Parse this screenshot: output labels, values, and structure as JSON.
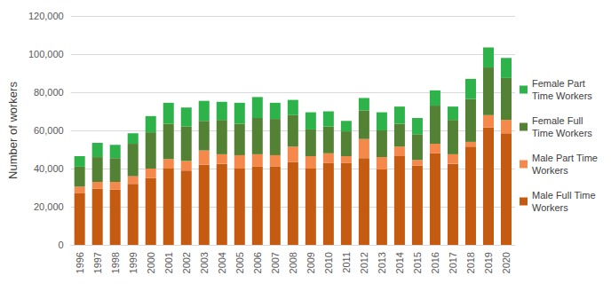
{
  "chart_data": {
    "type": "bar",
    "stacked": true,
    "y_label": "Number of workers",
    "categories": [
      "1996",
      "1997",
      "1998",
      "1999",
      "2000",
      "2001",
      "2002",
      "2003",
      "2004",
      "2005",
      "2006",
      "2007",
      "2008",
      "2009",
      "2010",
      "2011",
      "2012",
      "2013",
      "2014",
      "2015",
      "2016",
      "2017",
      "2018",
      "2019",
      "2020"
    ],
    "series": [
      {
        "name": "Male Full Time Workers",
        "color": "#c55a11",
        "values": [
          27000,
          29500,
          29000,
          32000,
          35000,
          40000,
          39000,
          42000,
          42500,
          40000,
          41000,
          41000,
          43500,
          40000,
          43000,
          43000,
          45500,
          39500,
          46500,
          41500,
          48000,
          42500,
          51500,
          61500,
          58500
        ]
      },
      {
        "name": "Male Part Time Workers",
        "color": "#f4894b",
        "values": [
          3500,
          3500,
          4000,
          4000,
          5000,
          5000,
          5000,
          7500,
          5000,
          7000,
          6500,
          6000,
          8000,
          6500,
          5000,
          3500,
          10000,
          6500,
          5000,
          3000,
          5000,
          5000,
          2500,
          6500,
          7000
        ]
      },
      {
        "name": "Female Full Time Workers",
        "color": "#548235",
        "values": [
          10500,
          13000,
          12500,
          17000,
          19000,
          18500,
          18000,
          15500,
          18000,
          16500,
          19000,
          19000,
          16500,
          14000,
          14000,
          13000,
          15000,
          14000,
          12000,
          13500,
          20000,
          18000,
          22500,
          25000,
          22000
        ]
      },
      {
        "name": "Female Part Time Workers",
        "color": "#2eb24a",
        "values": [
          5500,
          7500,
          7000,
          5500,
          8500,
          11000,
          10000,
          10500,
          9500,
          11000,
          11000,
          8500,
          8000,
          9000,
          8000,
          5500,
          6500,
          9500,
          9000,
          8500,
          8000,
          7000,
          10500,
          10500,
          10500
        ]
      }
    ],
    "ylim": [
      0,
      120000
    ],
    "yticks": [
      {
        "value": 0,
        "label": "0"
      },
      {
        "value": 20000,
        "label": "20,000"
      },
      {
        "value": 40000,
        "label": "40,000"
      },
      {
        "value": 60000,
        "label": "60,000"
      },
      {
        "value": 80000,
        "label": "80,000"
      },
      {
        "value": 100000,
        "label": "100,000"
      },
      {
        "value": 120000,
        "label": "120,000"
      }
    ],
    "grid": true,
    "legend": "right"
  }
}
